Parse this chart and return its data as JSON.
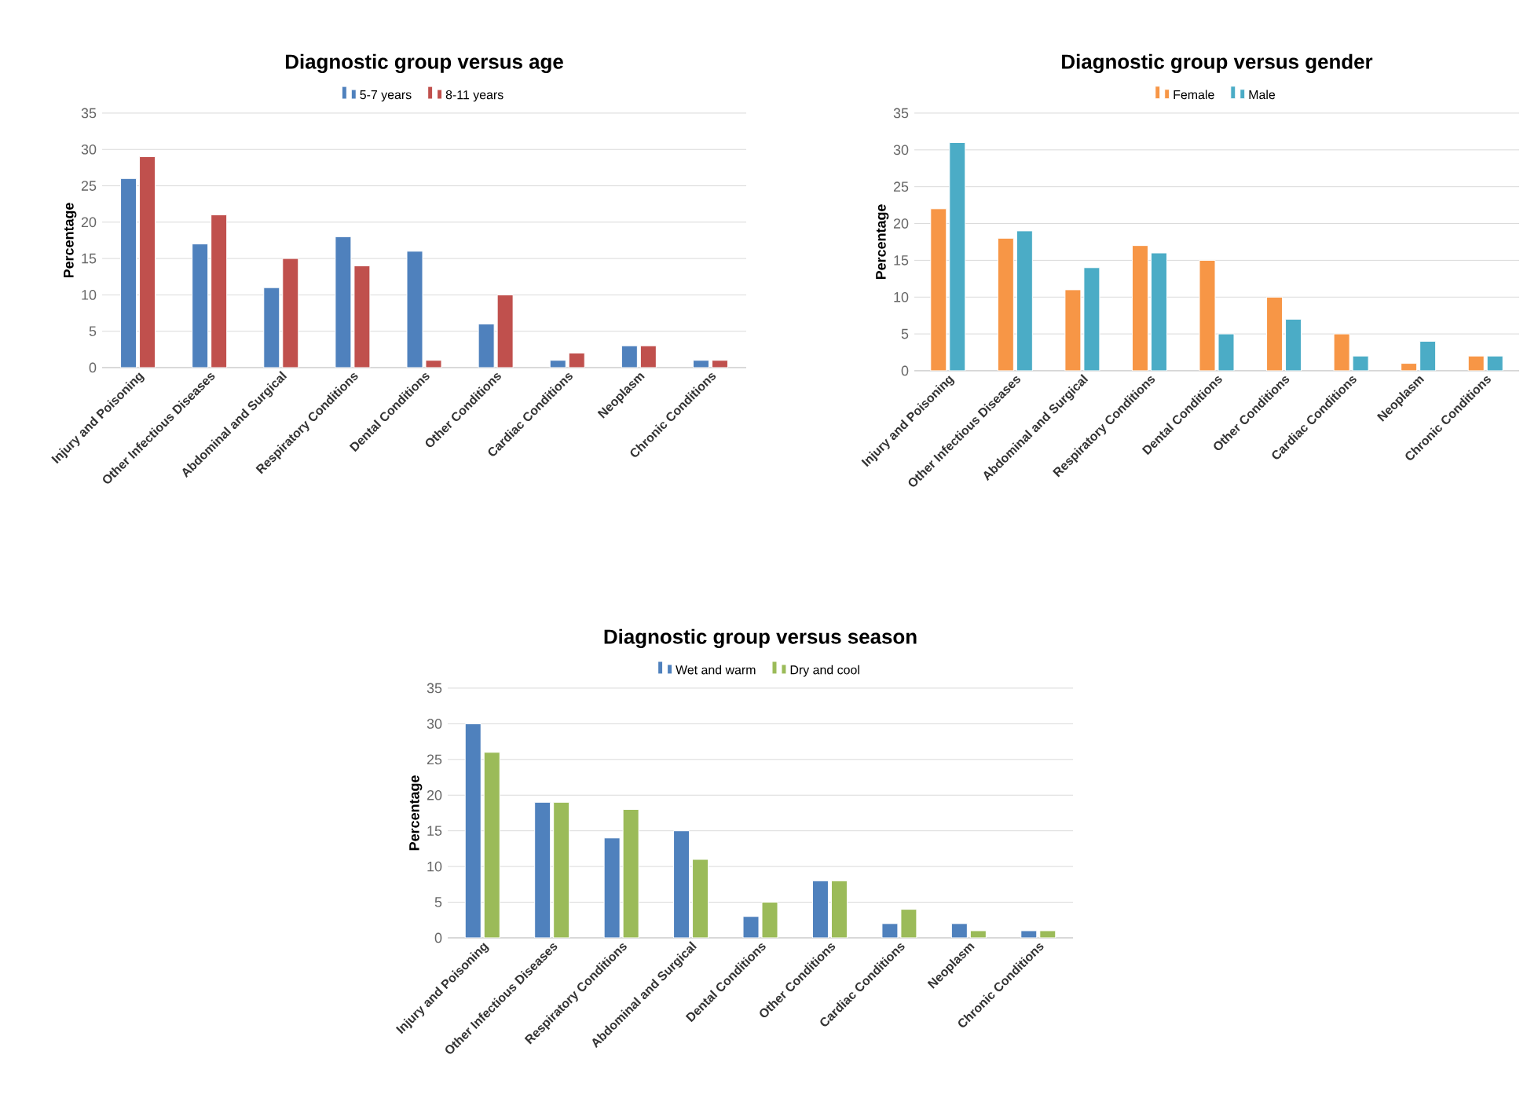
{
  "chart_data": [
    {
      "type": "bar",
      "title": "Diagnostic group versus age",
      "ylabel": "Percentage",
      "categories": [
        "Injury and Poisoning",
        "Other Infectious Diseases",
        "Abdominal and Surgical",
        "Respiratory Conditions",
        "Dental Conditions",
        "Other Conditions",
        "Cardiac Conditions",
        "Neoplasm",
        "Chronic Conditions"
      ],
      "ylim": [
        0,
        35
      ],
      "yticks": [
        0,
        5,
        10,
        15,
        20,
        25,
        30,
        35
      ],
      "grid": "y",
      "legend": "top",
      "series": [
        {
          "name": "5-7 years",
          "color": "#4f81bd",
          "values": [
            26,
            17,
            11,
            18,
            16,
            6,
            1,
            3,
            1
          ]
        },
        {
          "name": "8-11 years",
          "color": "#c0504d",
          "values": [
            29,
            21,
            15,
            14,
            1,
            10,
            2,
            3,
            1
          ]
        }
      ]
    },
    {
      "type": "bar",
      "title": "Diagnostic group versus gender",
      "ylabel": "Percentage",
      "categories": [
        "Injury and Poisoning",
        "Other Infectious Diseases",
        "Abdominal and Surgical",
        "Respiratory Conditions",
        "Dental Conditions",
        "Other Conditions",
        "Cardiac Conditions",
        "Neoplasm",
        "Chronic Conditions"
      ],
      "ylim": [
        0,
        35
      ],
      "yticks": [
        0,
        5,
        10,
        15,
        20,
        25,
        30,
        35
      ],
      "grid": "y",
      "legend": "top",
      "series": [
        {
          "name": "Female",
          "color": "#f79646",
          "values": [
            22,
            18,
            11,
            17,
            15,
            10,
            5,
            1,
            2
          ]
        },
        {
          "name": "Male",
          "color": "#4bacc6",
          "values": [
            31,
            19,
            14,
            16,
            5,
            7,
            2,
            4,
            2
          ]
        }
      ]
    },
    {
      "type": "bar",
      "title": "Diagnostic group versus season",
      "ylabel": "Percentage",
      "categories": [
        "Injury and Poisoning",
        "Other Infectious Diseases",
        "Respiratory Conditions",
        "Abdominal and Surgical",
        "Dental Conditions",
        "Other Conditions",
        "Cardiac Conditions",
        "Neoplasm",
        "Chronic Conditions"
      ],
      "ylim": [
        0,
        35
      ],
      "yticks": [
        0,
        5,
        10,
        15,
        20,
        25,
        30,
        35
      ],
      "grid": "y",
      "legend": "top",
      "series": [
        {
          "name": "Wet and warm",
          "color": "#4f81bd",
          "values": [
            30,
            19,
            14,
            15,
            3,
            8,
            2,
            2,
            1
          ]
        },
        {
          "name": "Dry and cool",
          "color": "#9bbb59",
          "values": [
            26,
            19,
            18,
            11,
            5,
            8,
            4,
            1,
            1
          ]
        }
      ]
    }
  ]
}
